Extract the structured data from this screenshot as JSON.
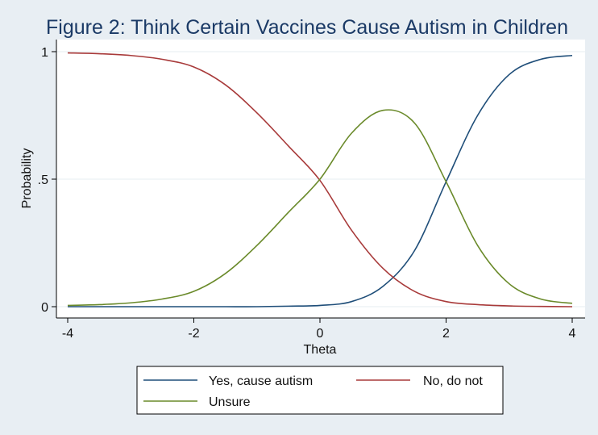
{
  "chart_data": {
    "type": "line",
    "title": "Figure 2: Think Certain Vaccines Cause Autism in Children",
    "xlabel": "Theta",
    "ylabel": "Probability",
    "xlim": [
      -4,
      4
    ],
    "ylim": [
      0,
      1
    ],
    "x_ticks": [
      {
        "value": -4,
        "label": "-4"
      },
      {
        "value": -2,
        "label": "-2"
      },
      {
        "value": 0,
        "label": "0"
      },
      {
        "value": 2,
        "label": "2"
      },
      {
        "value": 4,
        "label": "4"
      }
    ],
    "y_ticks": [
      {
        "value": 0,
        "label": "0"
      },
      {
        "value": 0.5,
        "label": ".5"
      },
      {
        "value": 1,
        "label": "1"
      }
    ],
    "grid": "horizontal",
    "legend_position": "bottom",
    "series": [
      {
        "name": "Yes, cause autism",
        "color": "#1f4e79",
        "x": [
          -4,
          -3.5,
          -3,
          -2.5,
          -2,
          -1.5,
          -1,
          -0.5,
          0,
          0.5,
          1,
          1.5,
          2,
          2.5,
          3,
          3.5,
          4
        ],
        "y": [
          0.0,
          0.0,
          0.0,
          0.0,
          0.0,
          0.0,
          0.0,
          0.002,
          0.005,
          0.02,
          0.08,
          0.22,
          0.49,
          0.75,
          0.91,
          0.97,
          0.985
        ]
      },
      {
        "name": "No, do not",
        "color": "#a83a3a",
        "x": [
          -4,
          -3.5,
          -3,
          -2.5,
          -2,
          -1.5,
          -1,
          -0.5,
          0,
          0.5,
          1,
          1.5,
          2,
          2.5,
          3,
          3.5,
          4
        ],
        "y": [
          0.995,
          0.992,
          0.985,
          0.97,
          0.94,
          0.87,
          0.76,
          0.63,
          0.495,
          0.3,
          0.15,
          0.06,
          0.02,
          0.008,
          0.003,
          0.001,
          0.0
        ]
      },
      {
        "name": "Unsure",
        "color": "#6a8a2a",
        "x": [
          -4,
          -3.5,
          -3,
          -2.5,
          -2,
          -1.5,
          -1,
          -0.5,
          0,
          0.5,
          1,
          1.5,
          2,
          2.5,
          3,
          3.5,
          4
        ],
        "y": [
          0.005,
          0.008,
          0.015,
          0.03,
          0.06,
          0.13,
          0.24,
          0.37,
          0.5,
          0.68,
          0.77,
          0.72,
          0.49,
          0.24,
          0.09,
          0.03,
          0.013
        ]
      }
    ]
  }
}
